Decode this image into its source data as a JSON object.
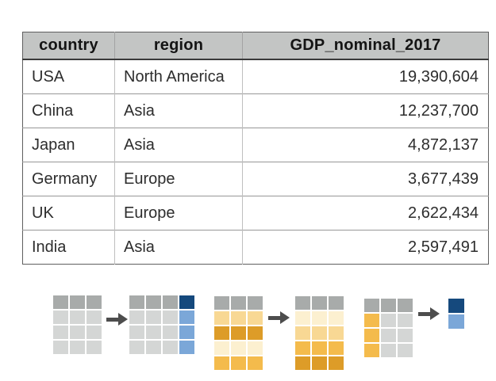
{
  "table": {
    "columns": [
      "country",
      "region",
      "GDP_nominal_2017"
    ],
    "rows": [
      [
        "USA",
        "North America",
        "19,390,604"
      ],
      [
        "China",
        "Asia",
        "12,237,700"
      ],
      [
        "Japan",
        "Asia",
        "4,872,137"
      ],
      [
        "Germany",
        "Europe",
        "3,677,439"
      ],
      [
        "UK",
        "Europe",
        "2,622,434"
      ],
      [
        "India",
        "Asia",
        "2,597,491"
      ]
    ]
  },
  "diagram": {
    "arrow_color": "#4d4d4d",
    "palette": {
      "header_gray": "#a8abaa",
      "cell_gray": "#d4d6d5",
      "navy_blue": "#15497d",
      "light_blue": "#7ba7d8",
      "orange_lightest": "#fcf0d0",
      "orange_light": "#f8d894",
      "orange_medium": "#f4bb4c",
      "orange_dark": "#dd9c28"
    },
    "grids": {
      "source": {
        "cells": [
          [
            "header_gray",
            "header_gray",
            "header_gray"
          ],
          [
            "cell_gray",
            "cell_gray",
            "cell_gray"
          ],
          [
            "cell_gray",
            "cell_gray",
            "cell_gray"
          ],
          [
            "cell_gray",
            "cell_gray",
            "cell_gray"
          ]
        ]
      },
      "add_col": {
        "cells": [
          [
            "header_gray",
            "header_gray",
            "header_gray",
            "navy_blue"
          ],
          [
            "cell_gray",
            "cell_gray",
            "cell_gray",
            "light_blue"
          ],
          [
            "cell_gray",
            "cell_gray",
            "cell_gray",
            "light_blue"
          ],
          [
            "cell_gray",
            "cell_gray",
            "cell_gray",
            "light_blue"
          ]
        ]
      },
      "unsorted": {
        "cells": [
          [
            "header_gray",
            "header_gray",
            "header_gray"
          ],
          [
            "orange_light",
            "orange_light",
            "orange_light"
          ],
          [
            "orange_dark",
            "orange_dark",
            "orange_dark"
          ],
          [
            "orange_lightest",
            "orange_lightest",
            "orange_lightest"
          ],
          [
            "orange_medium",
            "orange_medium",
            "orange_medium"
          ]
        ]
      },
      "sorted": {
        "cells": [
          [
            "header_gray",
            "header_gray",
            "header_gray"
          ],
          [
            "orange_lightest",
            "orange_lightest",
            "orange_lightest"
          ],
          [
            "orange_light",
            "orange_light",
            "orange_light"
          ],
          [
            "orange_medium",
            "orange_medium",
            "orange_medium"
          ],
          [
            "orange_dark",
            "orange_dark",
            "orange_dark"
          ]
        ]
      },
      "select_col": {
        "cells": [
          [
            "header_gray",
            "header_gray",
            "header_gray"
          ],
          [
            "orange_medium",
            "cell_gray",
            "cell_gray"
          ],
          [
            "orange_medium",
            "cell_gray",
            "cell_gray"
          ],
          [
            "orange_medium",
            "cell_gray",
            "cell_gray"
          ]
        ]
      },
      "aggregated": {
        "cells": [
          [
            "navy_blue"
          ],
          [
            "light_blue"
          ]
        ]
      }
    }
  }
}
